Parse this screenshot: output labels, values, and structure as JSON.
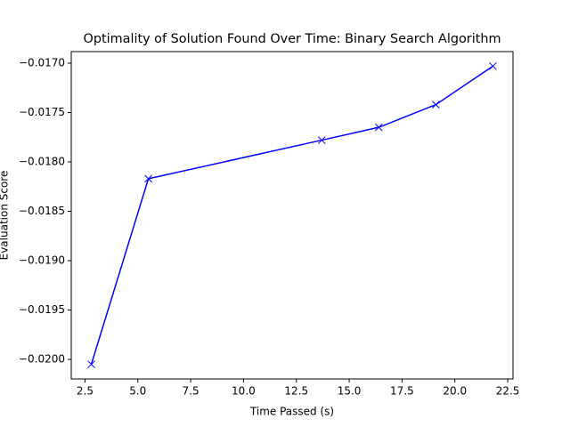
{
  "chart_data": {
    "type": "line",
    "title": "Optimality of Solution Found Over Time: Binary Search Algorithm",
    "x_label": "Time Passed (s)",
    "y_label": "Evaluation Score",
    "x": [
      2.8,
      5.5,
      13.7,
      16.4,
      19.1,
      21.8
    ],
    "series": [
      {
        "color": "#0000ff",
        "values": [
          -0.02005,
          -0.01817,
          -0.01778,
          -0.01765,
          -0.01742,
          -0.01703
        ]
      }
    ],
    "xlim": [
      1.85,
      22.75
    ],
    "xticks": [
      2.5,
      {
        "value": 5,
        "label": "5.0"
      },
      7.5,
      {
        "value": 10,
        "label": "10.0"
      },
      12.5,
      {
        "value": 15,
        "label": "15.0"
      },
      17.5,
      {
        "value": 20,
        "label": "20.0"
      },
      22.5
    ],
    "ylim": [
      -0.020198,
      -0.016883
    ],
    "yticks": [
      {
        "value": -0.02,
        "label": "−0.0200"
      },
      {
        "value": -0.0195,
        "label": "−0.0195"
      },
      {
        "value": -0.019,
        "label": "−0.0190"
      },
      {
        "value": -0.0185,
        "label": "−0.0185"
      },
      {
        "value": -0.018,
        "label": "−0.0180"
      },
      {
        "value": -0.0175,
        "label": "−0.0175"
      },
      {
        "value": -0.017,
        "label": "−0.0170"
      }
    ],
    "marker": "x",
    "grid": false
  }
}
